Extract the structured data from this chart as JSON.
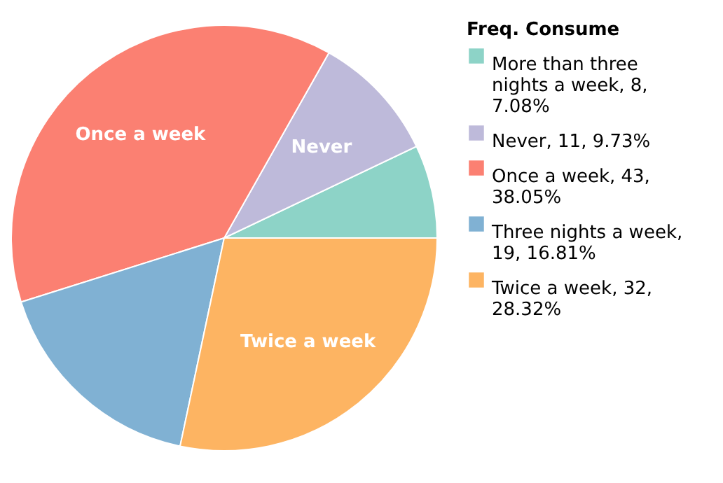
{
  "chart_data": {
    "type": "pie",
    "legend_title": "Freq. Consume",
    "categories": [
      "More than three nights a week, 8, 7.08%",
      "Never, 11, 9.73%",
      "Once a week, 43, 38.05%",
      "Three nights a week, 19, 16.81%",
      "Twice a week, 32, 28.32%"
    ],
    "values": [
      8,
      11,
      43,
      19,
      32
    ],
    "colors": [
      "#8dd3c7",
      "#bebada",
      "#fb8072",
      "#80b1d3",
      "#fdb462"
    ],
    "annotations": [
      {
        "text": "Never",
        "x": "Never, 11, 9.73%"
      },
      {
        "text": "Once a week",
        "x": "Once a week, 43, 38.05%"
      },
      {
        "text": "Twice a week",
        "x": "Twice a week, 32, 28.32%"
      }
    ],
    "legend": "right"
  }
}
